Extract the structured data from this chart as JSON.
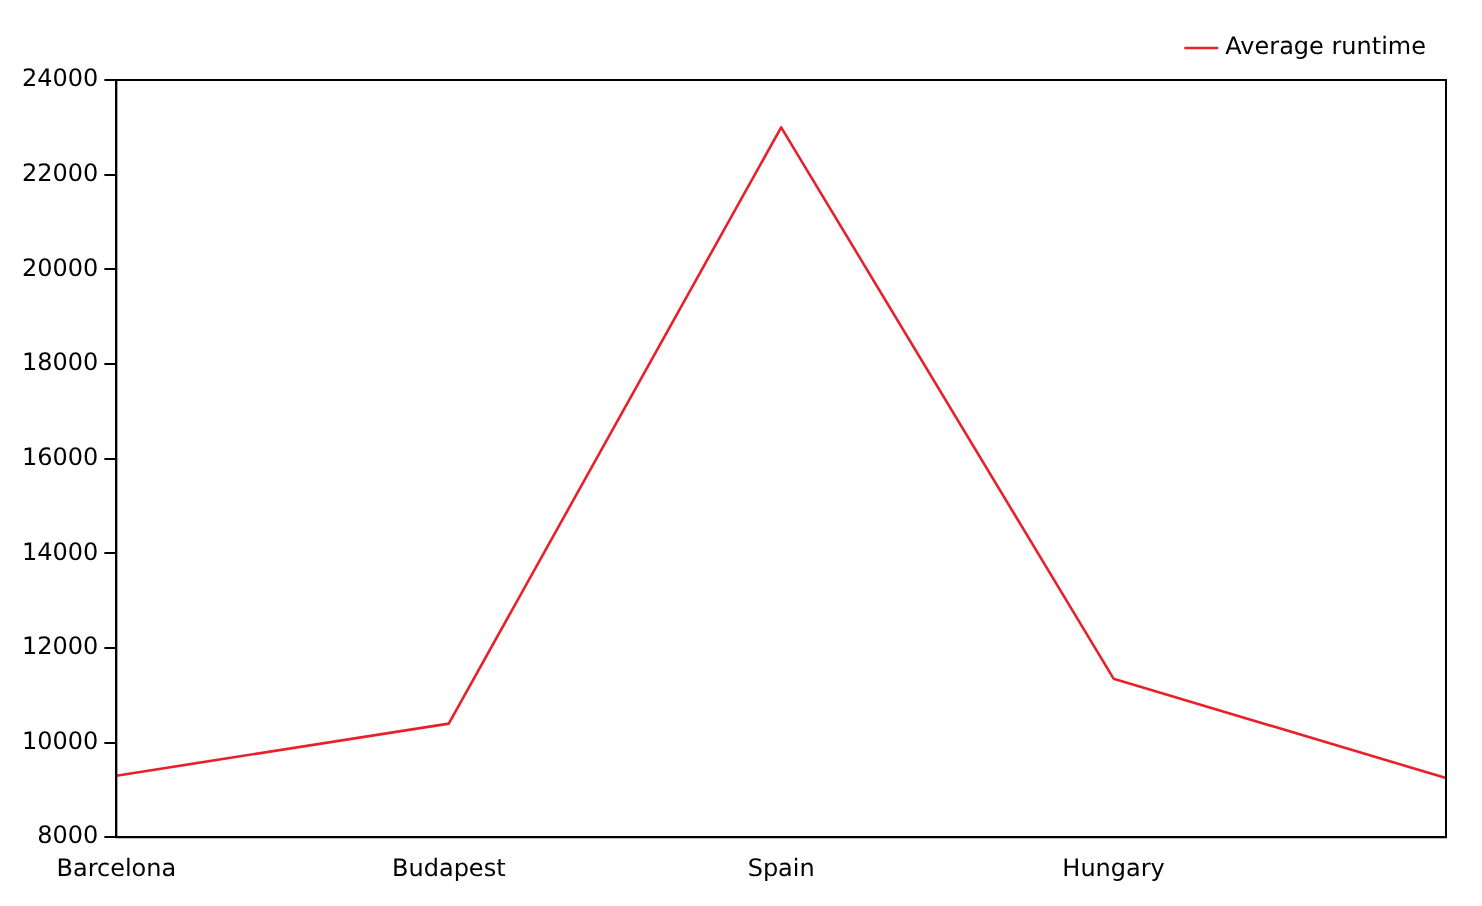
{
  "chart_data": {
    "type": "line",
    "categories": [
      "Barcelona",
      "Budapest",
      "Spain",
      "Hungary",
      null
    ],
    "series": [
      {
        "name": "Average runtime",
        "color": "#e8202a",
        "values": [
          9300,
          10400,
          23000,
          11350,
          9250
        ]
      }
    ],
    "ylim": [
      8000,
      24000
    ],
    "yticks": [
      8000,
      10000,
      12000,
      14000,
      16000,
      18000,
      20000,
      22000,
      24000
    ],
    "grid": false,
    "legend": "top right",
    "marker": "none",
    "line_style": "solid"
  }
}
